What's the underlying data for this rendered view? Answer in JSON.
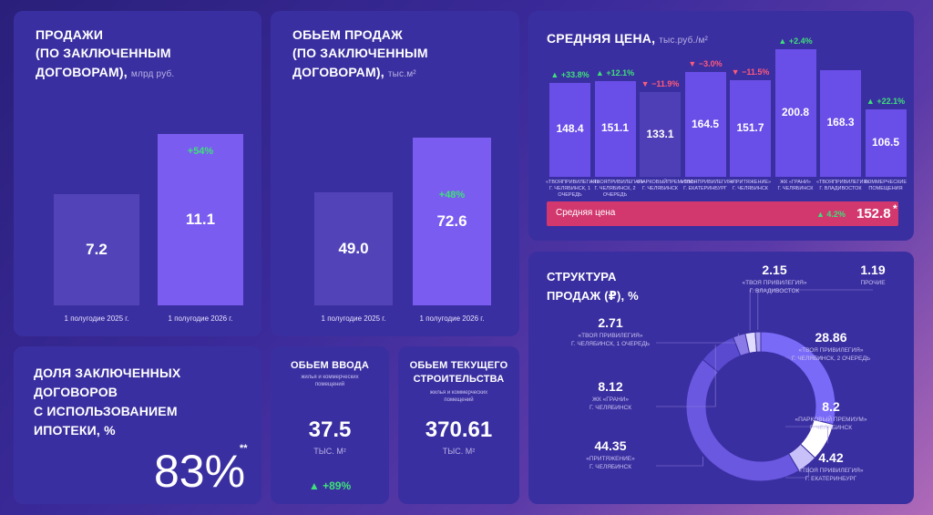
{
  "sales": {
    "title_lines": [
      "ПРОДАЖИ",
      "(ПО ЗАКЛЮЧЕННЫМ",
      "ДОГОВОРАМ),"
    ],
    "unit": "млрд руб.",
    "delta": "+54%"
  },
  "volume": {
    "title_lines": [
      "ОБЬЕМ ПРОДАЖ",
      "(ПО ЗАКЛЮЧЕННЫМ",
      "ДОГОВОРАМ),"
    ],
    "unit": "тыс.м²",
    "delta": "+48%"
  },
  "price": {
    "title": "СРЕДНЯЯ ЦЕНА,",
    "unit": "тыс.руб./м²",
    "avg_label": "Средняя цена",
    "avg_delta": "▲ 4.2%",
    "avg_value": "152.8",
    "avg_mark": "*"
  },
  "mortgage": {
    "title_lines": [
      "ДОЛЯ ЗАКЛЮЧЕННЫХ",
      "ДОГОВОРОВ",
      "С ИСПОЛЬЗОВАНИЕМ",
      "ИПОТЕКИ, %"
    ],
    "value": "83%",
    "mark": "**"
  },
  "input": {
    "title": "ОБЬЕМ ВВОДА",
    "subtitle": "жилья и коммерческих помещений",
    "value": "37.5",
    "unit": "ТЫС. М²",
    "delta": "▲ +89%"
  },
  "construction": {
    "title_lines": [
      "ОБЬЕМ ТЕКУЩЕГО",
      "СТРОИТЕЛЬСТВА"
    ],
    "subtitle": "жилья и коммерческих помещений",
    "value": "370.61",
    "unit": "ТЫС. М²"
  },
  "structure": {
    "title_lines": [
      "СТРУКТУРА",
      "ПРОДАЖ (₽), %"
    ]
  },
  "colors": {
    "card": "#3a2fa0",
    "bar_prev": "#5244b8",
    "bar_curr": "#7a5cf0",
    "price_bar": "#6a4ee8",
    "price_bar_dark": "#4e3fb6",
    "avg_bar": "#d2386e",
    "green": "#3ee07a",
    "red": "#ff5a7a"
  },
  "chart_data": [
    {
      "type": "bar",
      "id": "sales",
      "categories": [
        "1 полугодие 2025 г.",
        "1 полугодие 2026 г."
      ],
      "values": [
        7.2,
        11.1
      ],
      "labels": [
        "7.2",
        "11.1"
      ]
    },
    {
      "type": "bar",
      "id": "volume",
      "categories": [
        "1 полугодие 2025 г.",
        "1 полугодие 2026 г."
      ],
      "values": [
        49.0,
        72.6
      ],
      "labels": [
        "49.0",
        "72.6"
      ]
    },
    {
      "type": "bar",
      "id": "price",
      "categories": [
        [
          "«ТВОЯПРИВИЛЕГИЯ»",
          "г. Челябинск, 1 очередь"
        ],
        [
          "«ТВОЯПРИВИЛЕГИЯ»",
          "г. Челябинск, 2 очередь"
        ],
        [
          "«ПАРКОВЫЙПРЕМИУМ»",
          "г. Челябинск"
        ],
        [
          "«ТВОЯПРИВИЛЕГИЯ»",
          "г. Екатеринбург"
        ],
        [
          "«ПРИТЯЖЕНИЕ»",
          "г. Челябинск"
        ],
        [
          "ЖК «ГРАНИ»",
          "г. Челябинск"
        ],
        [
          "«ТВОЯПРИВИЛЕГИЯ»",
          "г. Владивосток"
        ],
        [
          "КОММЕРЧЕСКИЕ",
          "ПОМЕЩЕНИЯ"
        ]
      ],
      "values": [
        148.4,
        151.1,
        133.1,
        164.5,
        151.7,
        200.8,
        168.3,
        106.5
      ],
      "labels": [
        "148.4",
        "151.1",
        "133.1",
        "164.5",
        "151.7",
        "200.8",
        "168.3",
        "106.5"
      ],
      "deltas": [
        "▲ +33.8%",
        "▲ +12.1%",
        "▼ −11.9%",
        "▼ −3.0%",
        "▼ −11.5%",
        "▲ +2.4%",
        "",
        "▲ +22.1%"
      ],
      "delta_dirs": [
        "up",
        "up",
        "down",
        "down",
        "down",
        "up",
        "",
        "up"
      ]
    },
    {
      "type": "pie",
      "id": "structure",
      "segments": [
        {
          "value": 28.86,
          "label": "28.86",
          "name": [
            "«ТВОЯ ПРИВИЛЕГИЯ»",
            "Г. ЧЕЛЯБИНСК, 2 ОЧЕРЕДЬ"
          ],
          "color": "#7a6af8"
        },
        {
          "value": 8.2,
          "label": "8.2",
          "name": [
            "«ПАРКОВЫЙ ПРЕМИУМ»",
            "Г. ЧЕЛЯБИНСК"
          ],
          "color": "#ffffff"
        },
        {
          "value": 4.42,
          "label": "4.42",
          "name": [
            "«ТВОЯ ПРИВИЛЕГИЯ»",
            "Г. ЕКАТЕРИНБУРГ"
          ],
          "color": "#c8c0f8"
        },
        {
          "value": 44.35,
          "label": "44.35",
          "name": [
            "«ПРИТЯЖЕНИЕ»",
            "Г. ЧЕЛЯБИНСК"
          ],
          "color": "#6a58e0"
        },
        {
          "value": 8.12,
          "label": "8.12",
          "name": [
            "ЖК «ГРАНИ»",
            "Г. ЧЕЛЯБИНСК"
          ],
          "color": "#5a4ad0"
        },
        {
          "value": 2.71,
          "label": "2.71",
          "name": [
            "«ТВОЯ ПРИВИЛЕГИЯ»",
            "Г. ЧЕЛЯБИНСК, 1 ОЧЕРЕДЬ"
          ],
          "color": "#8a7ae8"
        },
        {
          "value": 2.15,
          "label": "2.15",
          "name": [
            "«ТВОЯ ПРИВИЛЕГИЯ»",
            "Г. ВЛАДИВОСТОК"
          ],
          "color": "#e0dcff"
        },
        {
          "value": 1.19,
          "label": "1.19",
          "name": [
            "ПРОЧИЕ"
          ],
          "color": "#a89cf0"
        }
      ]
    }
  ]
}
